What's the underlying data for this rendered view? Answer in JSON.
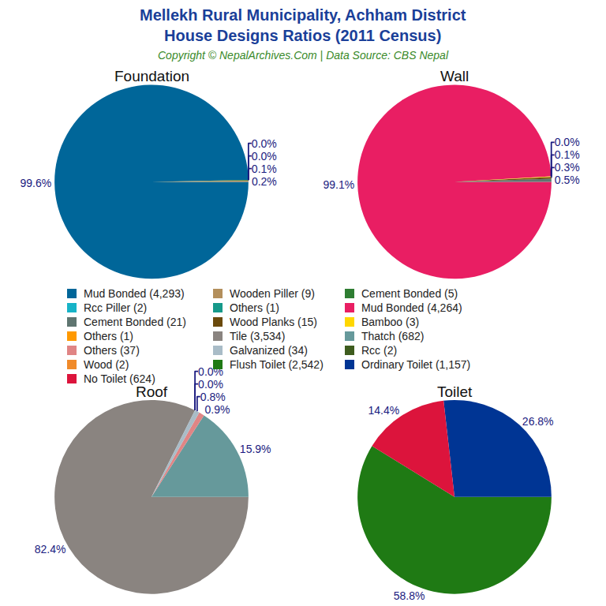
{
  "title": [
    "Mellekh Rural Municipality, Achham District",
    "House Designs Ratios (2011 Census)"
  ],
  "subtitle": "Copyright © NepalArchives.Com | Data Source: CBS Nepal",
  "chart_data": [
    {
      "type": "pie",
      "title": "Foundation",
      "categories": [
        "Mud Bonded (4,293)",
        "Wooden Piller (9)",
        "Cement Bonded (5)",
        "Rcc Piller (2)",
        "Others (1)"
      ],
      "values": [
        99.6,
        0.2,
        0.1,
        0.0,
        0.0
      ],
      "value_labels": [
        "99.6%",
        "0.2%",
        "0.1%",
        "0.0%",
        "0.0%"
      ],
      "colors": [
        "#006699",
        "#b38f5c",
        "#2e7d32",
        "#17b3c7",
        "#16998a"
      ],
      "data_labels": true
    },
    {
      "type": "pie",
      "title": "Wall",
      "categories": [
        "Mud Bonded (4,264)",
        "Cement Bonded (21)",
        "Wood Planks (15)",
        "Bamboo (3)",
        "Others (1)"
      ],
      "values": [
        99.1,
        0.5,
        0.3,
        0.1,
        0.0
      ],
      "value_labels": [
        "99.1%",
        "0.5%",
        "0.3%",
        "0.1%",
        "0.0%"
      ],
      "colors": [
        "#e91e63",
        "#5f7570",
        "#6b4a0c",
        "#ffd700",
        "#ff9900"
      ],
      "data_labels": true
    },
    {
      "type": "pie",
      "title": "Roof",
      "categories": [
        "Tile (3,534)",
        "Thatch (682)",
        "Others (37)",
        "Galvanized (34)",
        "Rcc (2)",
        "Wood (2)"
      ],
      "values": [
        82.4,
        15.9,
        0.9,
        0.8,
        0.0,
        0.0
      ],
      "value_labels": [
        "82.4%",
        "15.9%",
        "0.9%",
        "0.8%",
        "0.0%",
        "0.0%"
      ],
      "colors": [
        "#8a8480",
        "#66999b",
        "#e08585",
        "#a9bcc7",
        "#3e5c1e",
        "#f08a2a"
      ],
      "data_labels": true
    },
    {
      "type": "pie",
      "title": "Toilet",
      "categories": [
        "Flush Toilet (2,542)",
        "Ordinary Toilet (1,157)",
        "No Toilet (624)"
      ],
      "values": [
        58.8,
        26.8,
        14.4
      ],
      "value_labels": [
        "58.8%",
        "26.8%",
        "14.4%"
      ],
      "colors": [
        "#1f7a14",
        "#003594",
        "#dc143c"
      ],
      "data_labels": true
    }
  ]
}
